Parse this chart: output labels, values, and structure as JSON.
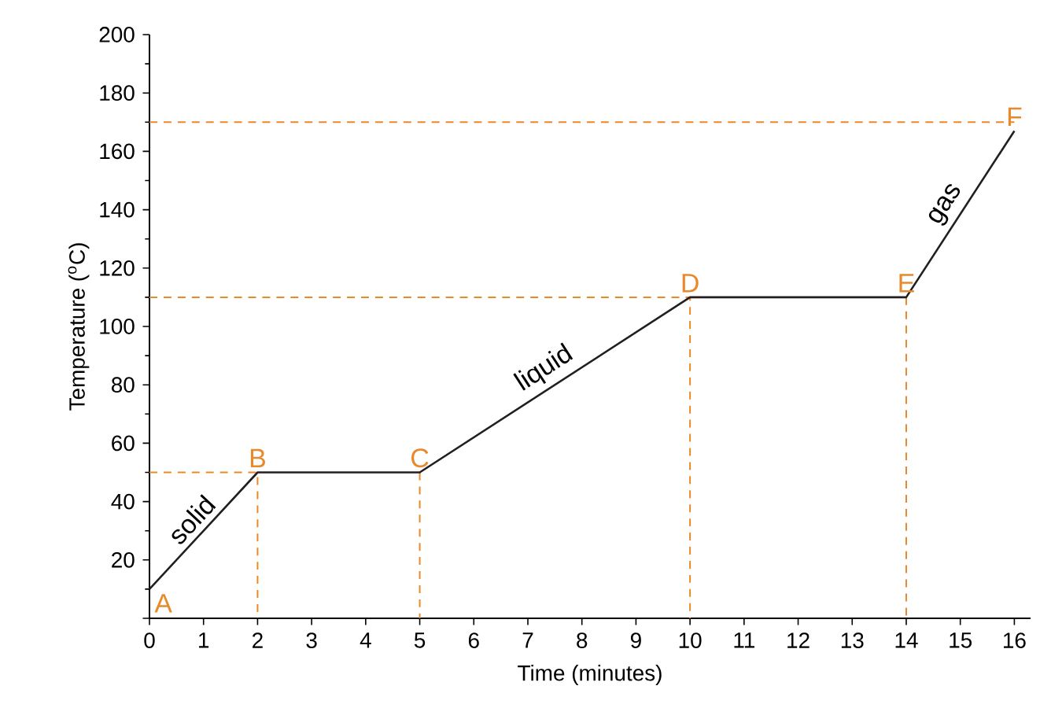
{
  "chart_data": {
    "type": "line",
    "xlabel": "Time (minutes)",
    "ylabel": "Temperature ($^{o}$C)",
    "xlim": [
      0,
      16.3
    ],
    "ylim": [
      0,
      200
    ],
    "xticks": [
      0,
      1,
      2,
      3,
      4,
      5,
      6,
      7,
      8,
      9,
      10,
      11,
      12,
      13,
      14,
      15,
      16
    ],
    "yticks": [
      {
        "value": 0,
        "label": null
      },
      20,
      40,
      60,
      80,
      100,
      120,
      140,
      160,
      180,
      200
    ],
    "grid": false,
    "marker": "none",
    "series": [
      {
        "color": "#e8892b",
        "line_style": "dashed",
        "x": [
          0,
          2,
          2
        ],
        "values": [
          50,
          50,
          0
        ]
      },
      {
        "color": "#e8892b",
        "line_style": "dashed",
        "x": [
          5,
          5
        ],
        "values": [
          50,
          0
        ]
      },
      {
        "color": "#e8892b",
        "line_style": "dashed",
        "x": [
          0,
          10,
          10
        ],
        "values": [
          110,
          110,
          0
        ]
      },
      {
        "color": "#e8892b",
        "line_style": "dashed",
        "x": [
          14,
          14
        ],
        "values": [
          110,
          0
        ]
      },
      {
        "color": "#e8892b",
        "line_style": "dashed",
        "x": [
          0,
          16
        ],
        "values": [
          170,
          170
        ]
      },
      {
        "color": "#231f20",
        "line_style": "solid",
        "x": [
          0,
          2,
          5,
          10,
          14,
          16
        ],
        "values": [
          10,
          50,
          50,
          110,
          110,
          167
        ]
      }
    ],
    "annotations": [
      {
        "text": "A",
        "x": 0,
        "y": 10
      },
      {
        "text": "B",
        "x": 2,
        "y": 50
      },
      {
        "text": "C",
        "x": 5,
        "y": 50
      },
      {
        "text": "D",
        "x": 10,
        "y": 110
      },
      {
        "text": "E",
        "x": 14,
        "y": 110
      },
      {
        "text": "F",
        "x": 16,
        "y": 167
      },
      {
        "text": "solid",
        "x": 1,
        "y": 30
      },
      {
        "text": "liquid",
        "x": 7.5,
        "y": 80
      },
      {
        "text": "gas",
        "x": 15,
        "y": 138.5
      }
    ]
  }
}
